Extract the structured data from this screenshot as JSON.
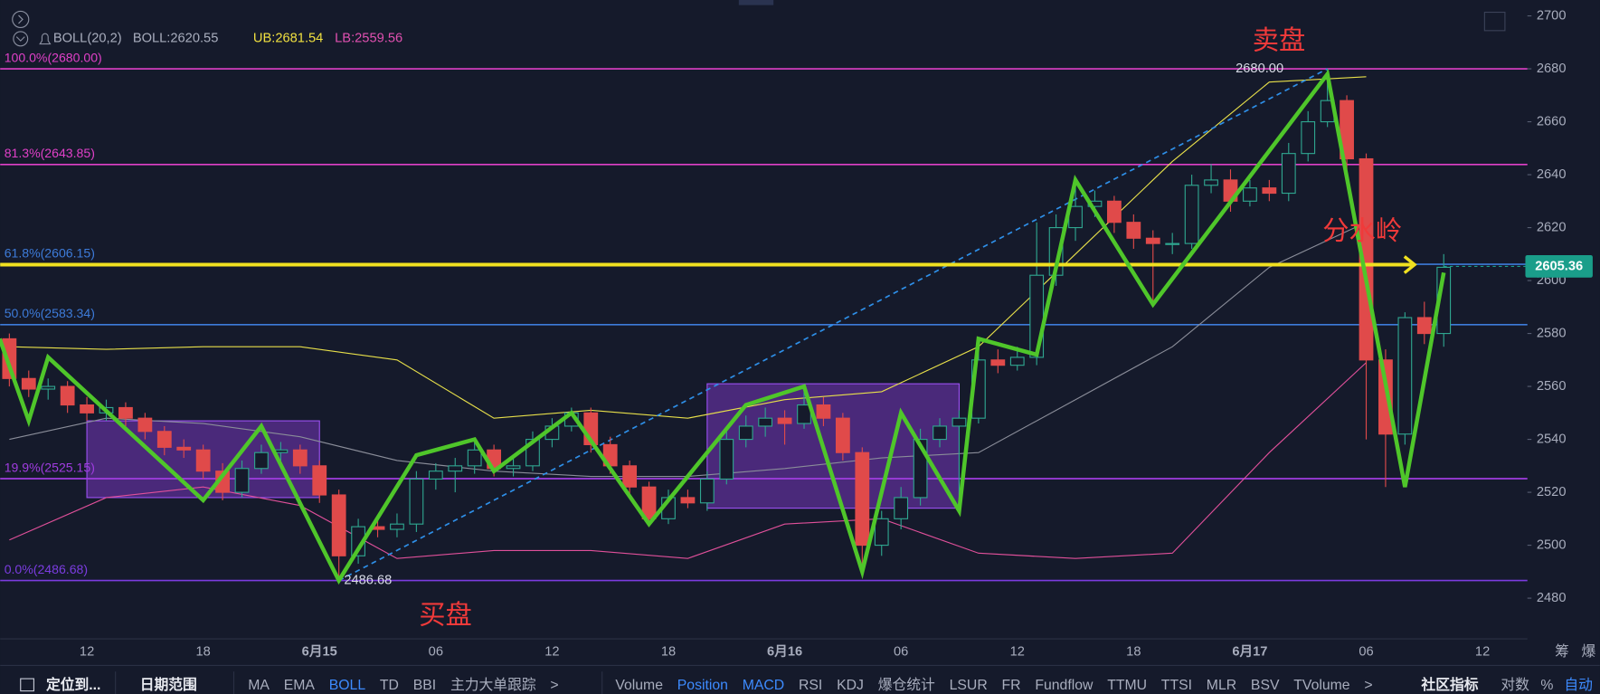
{
  "indicator": {
    "name": "BOLL(20,2)",
    "boll": "BOLL:2620.55",
    "ub": "UB:2681.54",
    "lb": "LB:2559.56"
  },
  "chart_data": {
    "type": "candlestick",
    "ylim": [
      2465,
      2706
    ],
    "yticks": [
      2480,
      2500,
      2520,
      2540,
      2560,
      2580,
      2600,
      2620,
      2640,
      2660,
      2680,
      2700
    ],
    "xticks": [
      "12",
      "18",
      "6月15",
      "06",
      "12",
      "18",
      "6月16",
      "06",
      "12",
      "18",
      "6月17",
      "06",
      "12"
    ],
    "right_icons": [
      "筹",
      "爆"
    ],
    "up_color": "#2fa58f",
    "down_color": "#e04a4a",
    "candles": [
      [
        2578,
        2580,
        2560,
        2563
      ],
      [
        2563,
        2566,
        2556,
        2559
      ],
      [
        2559,
        2563,
        2555,
        2560
      ],
      [
        2560,
        2562,
        2550,
        2553
      ],
      [
        2553,
        2556,
        2547,
        2550
      ],
      [
        2550,
        2555,
        2547,
        2552
      ],
      [
        2552,
        2554,
        2545,
        2548
      ],
      [
        2548,
        2550,
        2540,
        2543
      ],
      [
        2543,
        2545,
        2534,
        2537
      ],
      [
        2537,
        2540,
        2533,
        2536
      ],
      [
        2536,
        2538,
        2525,
        2528
      ],
      [
        2528,
        2531,
        2517,
        2520
      ],
      [
        2520,
        2532,
        2518,
        2529
      ],
      [
        2529,
        2538,
        2527,
        2535
      ],
      [
        2535,
        2539,
        2532,
        2536
      ],
      [
        2536,
        2538,
        2527,
        2530
      ],
      [
        2530,
        2532,
        2516,
        2519
      ],
      [
        2519,
        2521,
        2486.68,
        2496
      ],
      [
        2496,
        2510,
        2493,
        2507
      ],
      [
        2507,
        2510,
        2503,
        2506
      ],
      [
        2506,
        2512,
        2503,
        2508
      ],
      [
        2508,
        2528,
        2505,
        2525
      ],
      [
        2525,
        2531,
        2521,
        2528
      ],
      [
        2528,
        2533,
        2520,
        2530
      ],
      [
        2530,
        2539,
        2527,
        2536
      ],
      [
        2536,
        2538,
        2526,
        2529
      ],
      [
        2529,
        2533,
        2526,
        2530
      ],
      [
        2530,
        2543,
        2528,
        2540
      ],
      [
        2540,
        2548,
        2537,
        2545
      ],
      [
        2545,
        2552,
        2543,
        2550
      ],
      [
        2550,
        2552,
        2535,
        2538
      ],
      [
        2538,
        2541,
        2527,
        2530
      ],
      [
        2530,
        2532,
        2519,
        2522
      ],
      [
        2522,
        2524,
        2507,
        2510
      ],
      [
        2510,
        2521,
        2508,
        2518
      ],
      [
        2518,
        2521,
        2514,
        2516
      ],
      [
        2516,
        2528,
        2513,
        2525
      ],
      [
        2525,
        2543,
        2523,
        2540
      ],
      [
        2540,
        2549,
        2537,
        2545
      ],
      [
        2545,
        2552,
        2541,
        2548
      ],
      [
        2548,
        2551,
        2538,
        2546
      ],
      [
        2546,
        2560,
        2544,
        2553
      ],
      [
        2553,
        2556,
        2545,
        2548
      ],
      [
        2548,
        2550,
        2532,
        2535
      ],
      [
        2535,
        2537,
        2490,
        2500
      ],
      [
        2500,
        2513,
        2496,
        2510
      ],
      [
        2510,
        2522,
        2506,
        2518
      ],
      [
        2518,
        2544,
        2515,
        2540
      ],
      [
        2540,
        2548,
        2537,
        2545
      ],
      [
        2545,
        2551,
        2512,
        2548
      ],
      [
        2548,
        2573,
        2546,
        2570
      ],
      [
        2570,
        2574,
        2565,
        2568
      ],
      [
        2568,
        2575,
        2566,
        2571
      ],
      [
        2571,
        2622,
        2568,
        2602
      ],
      [
        2602,
        2625,
        2598,
        2620
      ],
      [
        2620,
        2638,
        2615,
        2628
      ],
      [
        2628,
        2634,
        2624,
        2630
      ],
      [
        2630,
        2632,
        2618,
        2622
      ],
      [
        2622,
        2625,
        2612,
        2616
      ],
      [
        2616,
        2619,
        2592,
        2614
      ],
      [
        2614,
        2618,
        2610,
        2614
      ],
      [
        2614,
        2640,
        2612,
        2636
      ],
      [
        2636,
        2644,
        2633,
        2638
      ],
      [
        2638,
        2642,
        2626,
        2630
      ],
      [
        2630,
        2638,
        2628,
        2635
      ],
      [
        2635,
        2638,
        2630,
        2633
      ],
      [
        2633,
        2652,
        2630,
        2648
      ],
      [
        2648,
        2664,
        2645,
        2660
      ],
      [
        2660,
        2680,
        2658,
        2668
      ],
      [
        2668,
        2670,
        2642,
        2646
      ],
      [
        2646,
        2648,
        2540,
        2570
      ],
      [
        2570,
        2574,
        2522,
        2542
      ],
      [
        2542,
        2588,
        2538,
        2586
      ],
      [
        2586,
        2592,
        2576,
        2580
      ],
      [
        2580,
        2610,
        2575,
        2605
      ]
    ],
    "bollinger": [
      {
        "color": "#e8e04a",
        "values": [
          2575,
          2574,
          2575,
          2575,
          2570,
          2548,
          2551,
          2548,
          2555,
          2558,
          2575,
          2610,
          2645,
          2675,
          2677
        ]
      },
      {
        "color": "#8a8d99",
        "values": [
          2540,
          2548,
          2546,
          2541,
          2532,
          2528,
          2526,
          2526,
          2529,
          2533,
          2535,
          2555,
          2575,
          2605,
          2622
        ]
      },
      {
        "color": "#e0509a",
        "values": [
          2502,
          2518,
          2522,
          2515,
          2495,
          2498,
          2498,
          2495,
          2508,
          2510,
          2497,
          2495,
          2497,
          2535,
          2569
        ]
      }
    ],
    "fib_levels": [
      {
        "label": "100.0%(2680.00)",
        "value": 2680,
        "color": "#e040c8"
      },
      {
        "label": "81.3%(2643.85)",
        "value": 2643.85,
        "color": "#e040c8"
      },
      {
        "label": "61.8%(2606.15)",
        "value": 2606.15,
        "color": "#3d7bd9"
      },
      {
        "label": "50.0%(2583.34)",
        "value": 2583.34,
        "color": "#3d7bd9"
      },
      {
        "label": "19.9%(2525.15)",
        "value": 2525.15,
        "color": "#a03ce0"
      },
      {
        "label": "0.0%(2486.68)",
        "value": 2486.68,
        "color": "#7b3ce0"
      }
    ],
    "zigzag": {
      "color": "#4fc62a",
      "index": [
        -0.5,
        1,
        2,
        10,
        13,
        17,
        21,
        24,
        25,
        29,
        33,
        38,
        41,
        44,
        46,
        49,
        50,
        53,
        55,
        59,
        68,
        72,
        74
      ],
      "price": [
        2578,
        2547,
        2571,
        2517,
        2545,
        2486.68,
        2534,
        2540,
        2528,
        2550,
        2508,
        2553,
        2560,
        2490,
        2550,
        2513,
        2578,
        2572,
        2638,
        2591,
        2678,
        2522,
        2603
      ]
    },
    "boxes": [
      {
        "from": 4,
        "to": 16,
        "top": 2547,
        "bottom": 2518
      },
      {
        "from": 36,
        "to": 49,
        "top": 2561,
        "bottom": 2514
      }
    ],
    "trend_line": {
      "from": [
        17,
        2486.68
      ],
      "to": [
        68,
        2680
      ],
      "color": "#2e8fe8"
    },
    "watershed_line": {
      "value": 2606,
      "arrow_at": 72.5,
      "color": "#f0e020"
    },
    "last_price": {
      "value": 2605.36,
      "label": "2605.36",
      "color": "#1a9e8a"
    },
    "annotations": [
      {
        "text": "卖盘",
        "index": 65.5,
        "value": 2690
      },
      {
        "text": "买盘",
        "index": 22.5,
        "value": 2473
      },
      {
        "text": "分水岭",
        "index": 69.8,
        "value": 2618
      },
      {
        "text": "2680.00",
        "index": 64.5,
        "value": 2680,
        "small": true
      },
      {
        "text": "2486.68",
        "index": 18.5,
        "value": 2486.68,
        "small": true
      }
    ]
  },
  "toolbar": {
    "left": [
      "定位到...",
      "日期范围"
    ],
    "studies": [
      {
        "label": "MA"
      },
      {
        "label": "EMA"
      },
      {
        "label": "BOLL",
        "active": true
      },
      {
        "label": "TD"
      },
      {
        "label": "BBI"
      },
      {
        "label": "主力大单跟踪"
      },
      {
        "label": ">"
      }
    ],
    "indicators": [
      {
        "label": "Volume"
      },
      {
        "label": "Position",
        "active": true
      },
      {
        "label": "MACD",
        "active": true
      },
      {
        "label": "RSI"
      },
      {
        "label": "KDJ"
      },
      {
        "label": "爆仓统计"
      },
      {
        "label": "LSUR"
      },
      {
        "label": "FR"
      },
      {
        "label": "Fundflow"
      },
      {
        "label": "TTMU"
      },
      {
        "label": "TTSI"
      },
      {
        "label": "MLR"
      },
      {
        "label": "BSV"
      },
      {
        "label": "TVolume"
      },
      {
        "label": ">"
      }
    ],
    "right": [
      "社区指标",
      "对数",
      "%",
      "自动"
    ]
  }
}
